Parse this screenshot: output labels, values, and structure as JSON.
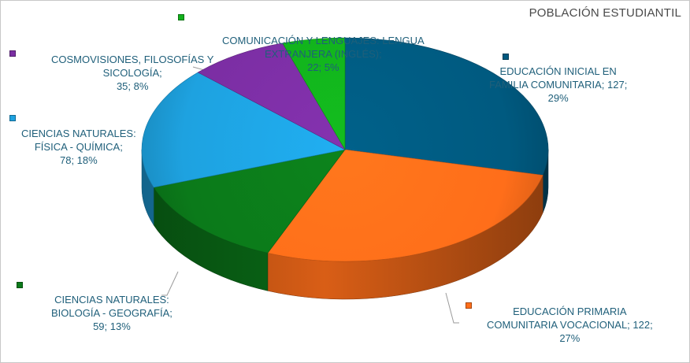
{
  "chart_data": {
    "type": "pie",
    "title": "POBLACIÓN ESTUDIANTIL",
    "slices": [
      {
        "label_lines": [
          "EDUCACIÓN INICIAL EN",
          "FAMILIA COMUNITARIA; 127;",
          "29%"
        ],
        "category": "EDUCACIÓN INICIAL EN FAMILIA COMUNITARIA",
        "value": 127,
        "percent": "29%",
        "color": "#005a80"
      },
      {
        "label_lines": [
          "EDUCACIÓN PRIMARIA",
          "COMUNITARIA VOCACIONAL; 122;",
          "27%"
        ],
        "category": "EDUCACIÓN PRIMARIA COMUNITARIA VOCACIONAL",
        "value": 122,
        "percent": "27%",
        "color": "#ff6e1a"
      },
      {
        "label_lines": [
          "CIENCIAS NATURALES:",
          "BIOLOGÍA - GEOGRAFÍA;",
          "59; 13%"
        ],
        "category": "CIENCIAS NATURALES: BIOLOGÍA - GEOGRAFÍA",
        "value": 59,
        "percent": "13%",
        "color": "#0b7a1a"
      },
      {
        "label_lines": [
          "CIENCIAS NATURALES:",
          "FÍSICA - QUÍMICA;",
          "78; 18%"
        ],
        "category": "CIENCIAS NATURALES: FÍSICA - QUÍMICA",
        "value": 78,
        "percent": "18%",
        "color": "#1ea2e0"
      },
      {
        "label_lines": [
          "COSMOVISIONES, FILOSOFÍAS Y",
          "SICOLOGÍA;",
          "35; 8%"
        ],
        "category": "COSMOVISIONES, FILOSOFÍAS Y SICOLOGÍA",
        "value": 35,
        "percent": "8%",
        "color": "#7b2ea3"
      },
      {
        "label_lines": [
          "COMUNICACIÓN Y LENGUAJES: LENGUA",
          "EXTRANJERA (INGLÉS);",
          "22; 5%"
        ],
        "category": "COMUNICACIÓN Y LENGUAJES: LENGUA EXTRANJERA (INGLÉS)",
        "value": 22,
        "percent": "5%",
        "color": "#12b01c"
      }
    ],
    "start": "12 o'clock",
    "direction": "clockwise",
    "style": "3d"
  }
}
